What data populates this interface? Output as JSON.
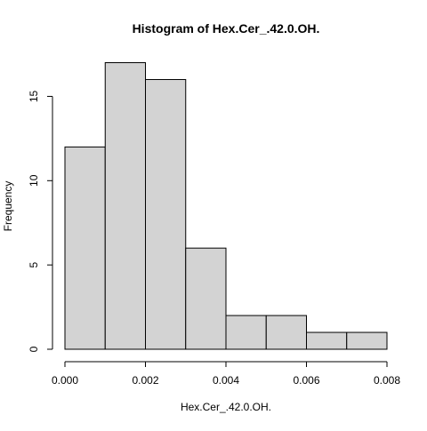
{
  "chart_data": {
    "type": "bar",
    "subtype": "histogram",
    "title": "Histogram of Hex.Cer_.42.0.OH.",
    "xlabel": "Hex.Cer_.42.0.OH.",
    "ylabel": "Frequency",
    "bins": [
      {
        "start": 0.0,
        "end": 0.001,
        "count": 12
      },
      {
        "start": 0.001,
        "end": 0.002,
        "count": 17
      },
      {
        "start": 0.002,
        "end": 0.003,
        "count": 16
      },
      {
        "start": 0.003,
        "end": 0.004,
        "count": 6
      },
      {
        "start": 0.004,
        "end": 0.005,
        "count": 2
      },
      {
        "start": 0.005,
        "end": 0.006,
        "count": 2
      },
      {
        "start": 0.006,
        "end": 0.007,
        "count": 1
      },
      {
        "start": 0.007,
        "end": 0.008,
        "count": 1
      }
    ],
    "xlim": [
      0.0,
      0.008
    ],
    "ylim": [
      0,
      17
    ],
    "x_ticks": [
      "0.000",
      "0.002",
      "0.004",
      "0.006",
      "0.008"
    ],
    "y_ticks": [
      "0",
      "5",
      "10",
      "15"
    ],
    "grid": false,
    "legend": "none",
    "colors": {
      "bar_fill": "#d3d3d3",
      "bar_stroke": "#000000",
      "axis": "#000000"
    }
  }
}
